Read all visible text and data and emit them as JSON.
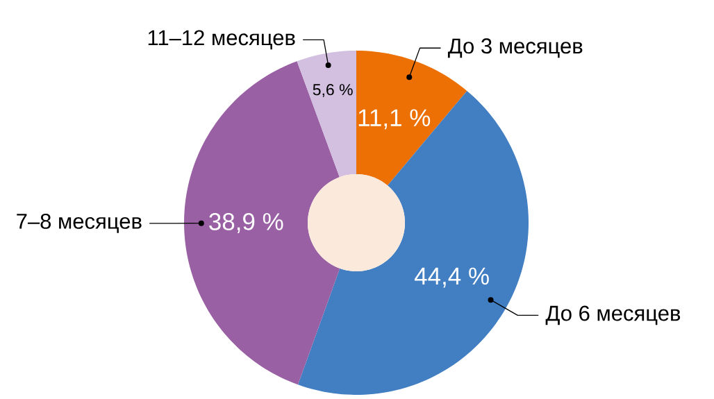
{
  "chart_data": {
    "type": "donut",
    "categories": [
      "До 3 месяцев",
      "До 6 месяцев",
      "7–8 месяцев",
      "11–12 месяцев"
    ],
    "values": [
      11.1,
      44.4,
      38.9,
      5.6
    ],
    "colors": [
      "#ec7004",
      "#427ec2",
      "#9960a4",
      "#d3bfdf"
    ],
    "value_labels": [
      "11,1 %",
      "44,4 %",
      "38,9 %",
      "5,6 %"
    ]
  }
}
